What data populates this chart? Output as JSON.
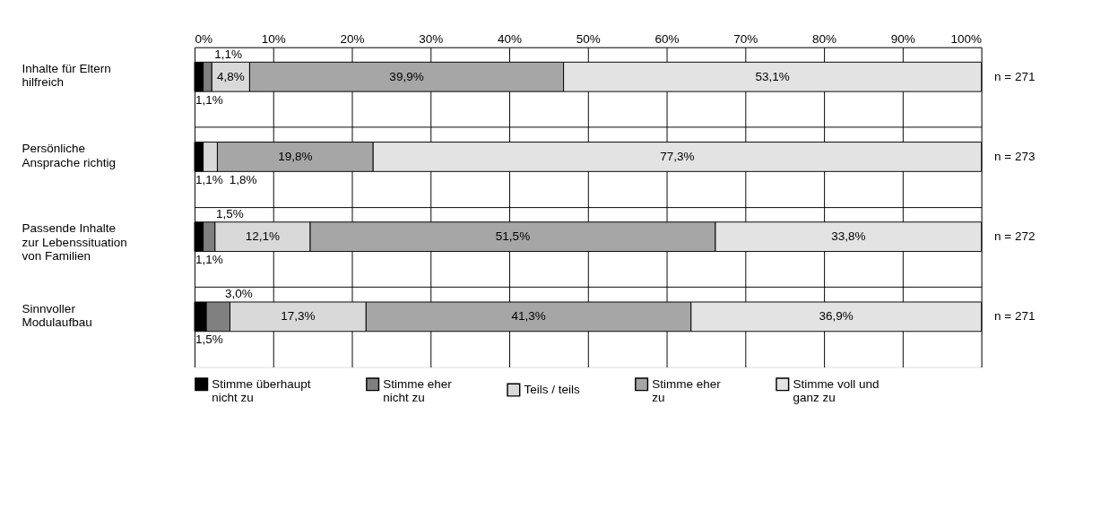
{
  "chart_data": {
    "type": "bar",
    "orientation": "horizontal",
    "stacked": true,
    "categories": [
      "Inhalte für Eltern\nhilfreich",
      "Persönliche\nAnsprache richtig",
      "Passende Inhalte\nzur Lebenssituation\nvon Familien",
      "Sinnvoller\nModulaufbau"
    ],
    "series": [
      {
        "name": "Stimme überhaupt\nnicht zu",
        "color": "#000000",
        "values": [
          1.1,
          1.1,
          1.1,
          1.5
        ],
        "value_labels": [
          "1,1%",
          "1,1%",
          "1,1%",
          "1,5%"
        ]
      },
      {
        "name": "Stimme eher\nnicht zu",
        "color": "#808080",
        "values": [
          1.1,
          null,
          1.5,
          3.0
        ],
        "value_labels": [
          "1,1%",
          null,
          "1,5%",
          "3,0%"
        ]
      },
      {
        "name": "Teils / teils",
        "color": "#d9d9d9",
        "values": [
          4.8,
          1.8,
          12.1,
          17.3
        ],
        "value_labels": [
          "4,8%",
          "1,8%",
          "12,1%",
          "17,3%"
        ]
      },
      {
        "name": "Stimme eher\nzu",
        "color": "#a6a6a6",
        "values": [
          39.9,
          19.8,
          51.5,
          41.3
        ],
        "value_labels": [
          "39,9%",
          "19,8%",
          "51,5%",
          "41,3%"
        ]
      },
      {
        "name": "Stimme voll und\nganz zu",
        "color": "#e3e3e3",
        "values": [
          53.1,
          77.3,
          33.8,
          36.9
        ],
        "value_labels": [
          "53,1%",
          "77,3%",
          "33,8%",
          "36,9%"
        ]
      }
    ],
    "xlim": [
      0,
      100
    ],
    "xticks": [
      {
        "value": 0,
        "label": "0%"
      },
      {
        "value": 10,
        "label": "10%"
      },
      {
        "value": 20,
        "label": "20%"
      },
      {
        "value": 30,
        "label": "30%"
      },
      {
        "value": 40,
        "label": "40%"
      },
      {
        "value": 50,
        "label": "50%"
      },
      {
        "value": 60,
        "label": "60%"
      },
      {
        "value": 70,
        "label": "70%"
      },
      {
        "value": 80,
        "label": "80%"
      },
      {
        "value": 90,
        "label": "90%"
      },
      {
        "value": 100,
        "label": "100%"
      }
    ],
    "annotations": [
      "n = 271",
      "n = 273",
      "n = 272",
      "n = 271"
    ],
    "grid": true,
    "legend": "bottom"
  }
}
